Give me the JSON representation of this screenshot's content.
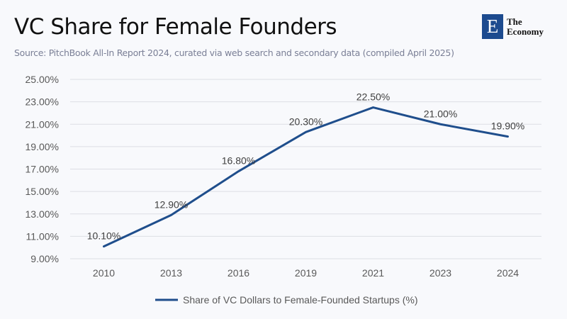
{
  "header": {
    "title": "VC Share for Female Founders",
    "subtitle": "Source: PitchBook All-In Report 2024, curated via web search and secondary data (compiled April 2025)",
    "logo": {
      "letter": "E",
      "line1": "The",
      "line2": "Economy",
      "color": "#1d4b8f"
    }
  },
  "chart_data": {
    "type": "line",
    "title": "VC Share for Female Founders",
    "categories": [
      "2010",
      "2013",
      "2016",
      "2019",
      "2021",
      "2023",
      "2024"
    ],
    "series": [
      {
        "name": "Share of VC Dollars to Female-Founded Startups (%)",
        "values": [
          10.1,
          12.9,
          16.8,
          20.3,
          22.5,
          21.0,
          19.9
        ],
        "color": "#1f4e8c"
      }
    ],
    "data_labels": [
      "10.10%",
      "12.90%",
      "16.80%",
      "20.30%",
      "22.50%",
      "21.00%",
      "19.90%"
    ],
    "yticks": [
      9,
      11,
      13,
      15,
      17,
      19,
      21,
      23,
      25
    ],
    "ytick_labels": [
      "9.00%",
      "11.00%",
      "13.00%",
      "15.00%",
      "17.00%",
      "19.00%",
      "21.00%",
      "23.00%",
      "25.00%"
    ],
    "ylim": [
      9,
      25
    ],
    "grid": true,
    "legend_position": "bottom"
  }
}
